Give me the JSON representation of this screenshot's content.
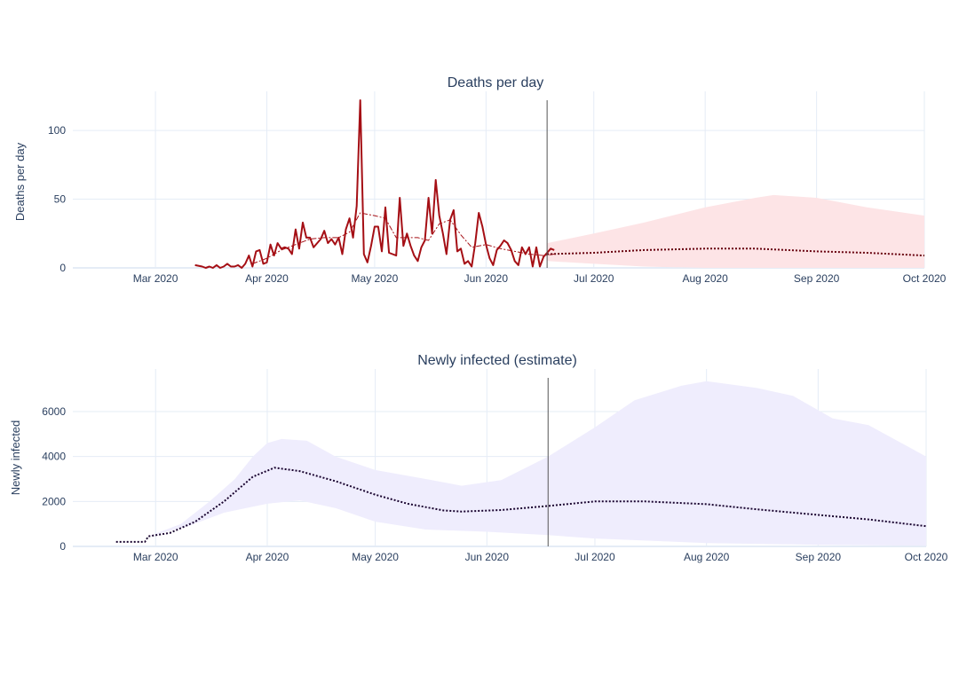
{
  "chart_data": [
    {
      "type": "line",
      "title": "Deaths per day",
      "ylabel": "Deaths per day",
      "xlabel": "",
      "x_range": [
        "2020-02-07",
        "2020-10-01"
      ],
      "ylim": [
        0,
        122
      ],
      "x_ticks": [
        {
          "date": "2020-03-01",
          "label": "Mar 2020"
        },
        {
          "date": "2020-04-01",
          "label": "Apr 2020"
        },
        {
          "date": "2020-05-01",
          "label": "May 2020"
        },
        {
          "date": "2020-06-01",
          "label": "Jun 2020"
        },
        {
          "date": "2020-07-01",
          "label": "Jul 2020"
        },
        {
          "date": "2020-08-01",
          "label": "Aug 2020"
        },
        {
          "date": "2020-09-01",
          "label": "Sep 2020"
        },
        {
          "date": "2020-10-01",
          "label": "Oct 2020"
        }
      ],
      "y_ticks": [
        0,
        50,
        100
      ],
      "grid": true,
      "vline_date": "2020-06-18",
      "colors": {
        "observed": "#a50f15",
        "band": "#fde4e6",
        "forecast": "#67000d"
      },
      "series": [
        {
          "style": "solid",
          "points": [
            [
              "2020-03-12",
              2
            ],
            [
              "2020-03-14",
              1
            ],
            [
              "2020-03-15",
              0
            ],
            [
              "2020-03-16",
              1
            ],
            [
              "2020-03-17",
              0
            ],
            [
              "2020-03-18",
              2
            ],
            [
              "2020-03-19",
              0
            ],
            [
              "2020-03-20",
              1
            ],
            [
              "2020-03-21",
              3
            ],
            [
              "2020-03-22",
              1
            ],
            [
              "2020-03-23",
              1
            ],
            [
              "2020-03-24",
              2
            ],
            [
              "2020-03-25",
              0
            ],
            [
              "2020-03-26",
              3
            ],
            [
              "2020-03-27",
              9
            ],
            [
              "2020-03-28",
              1
            ],
            [
              "2020-03-29",
              12
            ],
            [
              "2020-03-30",
              13
            ],
            [
              "2020-03-31",
              3
            ],
            [
              "2020-04-01",
              4
            ],
            [
              "2020-04-02",
              17
            ],
            [
              "2020-04-03",
              9
            ],
            [
              "2020-04-04",
              18
            ],
            [
              "2020-04-05",
              14
            ],
            [
              "2020-04-06",
              15
            ],
            [
              "2020-04-07",
              14
            ],
            [
              "2020-04-08",
              10
            ],
            [
              "2020-04-09",
              28
            ],
            [
              "2020-04-10",
              14
            ],
            [
              "2020-04-11",
              33
            ],
            [
              "2020-04-12",
              22
            ],
            [
              "2020-04-13",
              22
            ],
            [
              "2020-04-14",
              15
            ],
            [
              "2020-04-15",
              18
            ],
            [
              "2020-04-16",
              21
            ],
            [
              "2020-04-17",
              27
            ],
            [
              "2020-04-18",
              18
            ],
            [
              "2020-04-19",
              21
            ],
            [
              "2020-04-20",
              17
            ],
            [
              "2020-04-21",
              22
            ],
            [
              "2020-04-22",
              10
            ],
            [
              "2020-04-23",
              28
            ],
            [
              "2020-04-24",
              36
            ],
            [
              "2020-04-25",
              22
            ],
            [
              "2020-04-26",
              45
            ],
            [
              "2020-04-27",
              122
            ],
            [
              "2020-04-28",
              10
            ],
            [
              "2020-04-29",
              4
            ],
            [
              "2020-04-30",
              16
            ],
            [
              "2020-05-01",
              30
            ],
            [
              "2020-05-02",
              30
            ],
            [
              "2020-05-03",
              12
            ],
            [
              "2020-05-04",
              44
            ],
            [
              "2020-05-05",
              11
            ],
            [
              "2020-05-06",
              10
            ],
            [
              "2020-05-07",
              9
            ],
            [
              "2020-05-08",
              51
            ],
            [
              "2020-05-09",
              16
            ],
            [
              "2020-05-10",
              25
            ],
            [
              "2020-05-11",
              16
            ],
            [
              "2020-05-12",
              9
            ],
            [
              "2020-05-13",
              5
            ],
            [
              "2020-05-14",
              15
            ],
            [
              "2020-05-15",
              20
            ],
            [
              "2020-05-16",
              51
            ],
            [
              "2020-05-17",
              25
            ],
            [
              "2020-05-18",
              64
            ],
            [
              "2020-05-19",
              38
            ],
            [
              "2020-05-20",
              25
            ],
            [
              "2020-05-21",
              10
            ],
            [
              "2020-05-22",
              35
            ],
            [
              "2020-05-23",
              42
            ],
            [
              "2020-05-24",
              12
            ],
            [
              "2020-05-25",
              14
            ],
            [
              "2020-05-26",
              3
            ],
            [
              "2020-05-27",
              5
            ],
            [
              "2020-05-28",
              1
            ],
            [
              "2020-05-29",
              18
            ],
            [
              "2020-05-30",
              40
            ],
            [
              "2020-05-31",
              30
            ],
            [
              "2020-06-01",
              17
            ],
            [
              "2020-06-02",
              7
            ],
            [
              "2020-06-03",
              2
            ],
            [
              "2020-06-04",
              13
            ],
            [
              "2020-06-05",
              16
            ],
            [
              "2020-06-06",
              20
            ],
            [
              "2020-06-07",
              18
            ],
            [
              "2020-06-08",
              13
            ],
            [
              "2020-06-09",
              5
            ],
            [
              "2020-06-10",
              2
            ],
            [
              "2020-06-11",
              15
            ],
            [
              "2020-06-12",
              10
            ],
            [
              "2020-06-13",
              15
            ],
            [
              "2020-06-14",
              1
            ],
            [
              "2020-06-15",
              15
            ],
            [
              "2020-06-16",
              1
            ],
            [
              "2020-06-17",
              8
            ],
            [
              "2020-06-18",
              11
            ],
            [
              "2020-06-19",
              14
            ],
            [
              "2020-06-20",
              13
            ]
          ]
        },
        {
          "style": "dashdot",
          "points": [
            [
              "2020-03-28",
              3
            ],
            [
              "2020-04-01",
              7
            ],
            [
              "2020-04-05",
              13
            ],
            [
              "2020-04-09",
              17
            ],
            [
              "2020-04-13",
              21
            ],
            [
              "2020-04-17",
              22
            ],
            [
              "2020-04-21",
              22
            ],
            [
              "2020-04-24",
              26
            ],
            [
              "2020-04-27",
              40
            ],
            [
              "2020-05-01",
              38
            ],
            [
              "2020-05-04",
              36
            ],
            [
              "2020-05-07",
              22
            ],
            [
              "2020-05-10",
              22
            ],
            [
              "2020-05-13",
              22
            ],
            [
              "2020-05-16",
              20
            ],
            [
              "2020-05-19",
              32
            ],
            [
              "2020-05-22",
              35
            ],
            [
              "2020-05-25",
              24
            ],
            [
              "2020-05-28",
              15
            ],
            [
              "2020-06-01",
              17
            ],
            [
              "2020-06-05",
              14
            ],
            [
              "2020-06-09",
              12
            ],
            [
              "2020-06-13",
              10
            ],
            [
              "2020-06-17",
              9
            ],
            [
              "2020-06-20",
              10
            ]
          ]
        },
        {
          "style": "dotted",
          "points": [
            [
              "2020-06-18",
              10
            ],
            [
              "2020-07-01",
              11
            ],
            [
              "2020-07-15",
              13
            ],
            [
              "2020-08-01",
              14
            ],
            [
              "2020-08-15",
              14
            ],
            [
              "2020-09-01",
              12
            ],
            [
              "2020-09-15",
              11
            ],
            [
              "2020-10-01",
              9
            ]
          ]
        }
      ],
      "band": {
        "upper": [
          [
            "2020-06-18",
            18
          ],
          [
            "2020-07-01",
            25
          ],
          [
            "2020-07-15",
            33
          ],
          [
            "2020-08-01",
            44
          ],
          [
            "2020-08-15",
            51
          ],
          [
            "2020-08-20",
            53
          ],
          [
            "2020-09-01",
            51
          ],
          [
            "2020-09-15",
            44
          ],
          [
            "2020-10-01",
            38
          ]
        ],
        "lower": [
          [
            "2020-06-18",
            5
          ],
          [
            "2020-07-01",
            3
          ],
          [
            "2020-07-15",
            1
          ],
          [
            "2020-08-01",
            0
          ],
          [
            "2020-10-01",
            0
          ]
        ]
      }
    },
    {
      "type": "line",
      "title": "Newly infected (estimate)",
      "ylabel": "Newly infected",
      "xlabel": "",
      "x_range": [
        "2020-02-07",
        "2020-10-01"
      ],
      "ylim": [
        0,
        7500
      ],
      "x_ticks": [
        {
          "date": "2020-03-01",
          "label": "Mar 2020"
        },
        {
          "date": "2020-04-01",
          "label": "Apr 2020"
        },
        {
          "date": "2020-05-01",
          "label": "May 2020"
        },
        {
          "date": "2020-06-01",
          "label": "Jun 2020"
        },
        {
          "date": "2020-07-01",
          "label": "Jul 2020"
        },
        {
          "date": "2020-08-01",
          "label": "Aug 2020"
        },
        {
          "date": "2020-09-01",
          "label": "Sep 2020"
        },
        {
          "date": "2020-10-01",
          "label": "Oct 2020"
        }
      ],
      "y_ticks": [
        0,
        2000,
        4000,
        6000
      ],
      "grid": true,
      "vline_date": "2020-06-18",
      "colors": {
        "band": "#efedfd",
        "median": "#1a0530"
      },
      "series": [
        {
          "style": "dotted",
          "points": [
            [
              "2020-02-19",
              200
            ],
            [
              "2020-02-27",
              200
            ],
            [
              "2020-02-28",
              450
            ],
            [
              "2020-03-05",
              600
            ],
            [
              "2020-03-12",
              1100
            ],
            [
              "2020-03-20",
              2000
            ],
            [
              "2020-03-28",
              3100
            ],
            [
              "2020-04-03",
              3500
            ],
            [
              "2020-04-10",
              3350
            ],
            [
              "2020-04-20",
              2900
            ],
            [
              "2020-05-01",
              2300
            ],
            [
              "2020-05-10",
              1900
            ],
            [
              "2020-05-20",
              1600
            ],
            [
              "2020-05-25",
              1550
            ],
            [
              "2020-06-05",
              1620
            ],
            [
              "2020-06-18",
              1800
            ],
            [
              "2020-07-01",
              2000
            ],
            [
              "2020-07-15",
              2000
            ],
            [
              "2020-08-01",
              1880
            ],
            [
              "2020-08-15",
              1650
            ],
            [
              "2020-09-01",
              1400
            ],
            [
              "2020-09-15",
              1200
            ],
            [
              "2020-10-01",
              900
            ]
          ]
        }
      ],
      "band": {
        "upper": [
          [
            "2020-02-28",
            450
          ],
          [
            "2020-03-08",
            1000
          ],
          [
            "2020-03-16",
            2000
          ],
          [
            "2020-03-23",
            3000
          ],
          [
            "2020-03-28",
            4000
          ],
          [
            "2020-04-01",
            4600
          ],
          [
            "2020-04-05",
            4780
          ],
          [
            "2020-04-12",
            4700
          ],
          [
            "2020-04-20",
            4000
          ],
          [
            "2020-05-01",
            3400
          ],
          [
            "2020-05-15",
            3000
          ],
          [
            "2020-05-25",
            2700
          ],
          [
            "2020-06-05",
            2950
          ],
          [
            "2020-06-18",
            4000
          ],
          [
            "2020-07-01",
            5300
          ],
          [
            "2020-07-12",
            6500
          ],
          [
            "2020-07-25",
            7150
          ],
          [
            "2020-08-01",
            7350
          ],
          [
            "2020-08-15",
            7050
          ],
          [
            "2020-08-25",
            6700
          ],
          [
            "2020-09-05",
            5700
          ],
          [
            "2020-09-15",
            5400
          ],
          [
            "2020-10-01",
            4000
          ]
        ],
        "lower": [
          [
            "2020-02-28",
            450
          ],
          [
            "2020-03-10",
            900
          ],
          [
            "2020-03-20",
            1500
          ],
          [
            "2020-04-01",
            1900
          ],
          [
            "2020-04-10",
            2050
          ],
          [
            "2020-04-20",
            1700
          ],
          [
            "2020-05-01",
            1100
          ],
          [
            "2020-05-15",
            750
          ],
          [
            "2020-06-01",
            650
          ],
          [
            "2020-06-18",
            500
          ],
          [
            "2020-07-01",
            350
          ],
          [
            "2020-08-01",
            150
          ],
          [
            "2020-09-01",
            70
          ],
          [
            "2020-10-01",
            30
          ]
        ]
      }
    }
  ]
}
